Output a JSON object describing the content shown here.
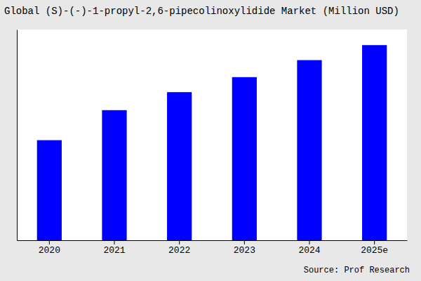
{
  "chart_data": {
    "type": "bar",
    "title": "Global (S)-(-)-1-propyl-2,6-pipecolinoxylidide Market (Million USD)",
    "categories": [
      "2020",
      "2021",
      "2022",
      "2023",
      "2024",
      "2025e"
    ],
    "values": [
      100,
      130,
      148,
      163,
      180,
      195
    ],
    "color": "#0000FF",
    "ylim": [
      0,
      210.6
    ],
    "yticks": [],
    "tick_labels": "x",
    "grid": false,
    "annotations": [
      "Source: Prof Research"
    ]
  }
}
